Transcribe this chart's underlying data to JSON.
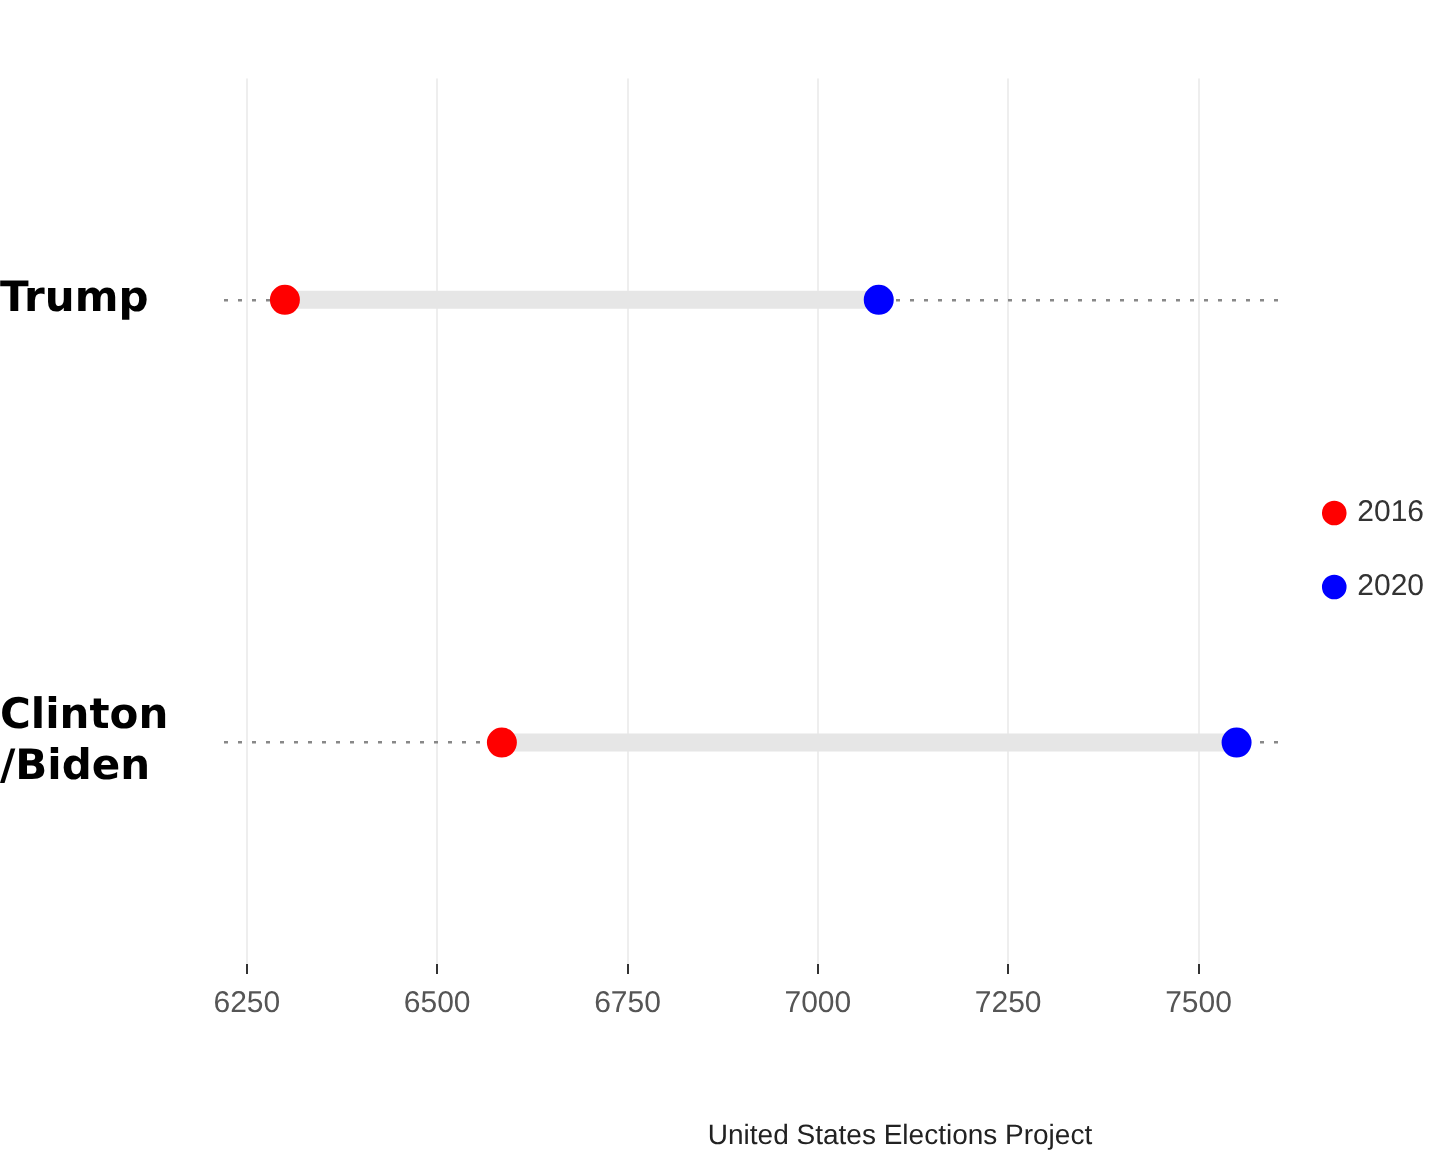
{
  "chart_data": {
    "type": "scatter",
    "orientation": "horizontal",
    "categories": [
      "Trump",
      "Clinton/Biden"
    ],
    "series": [
      {
        "name": "2016",
        "color": "#ff0000",
        "values": [
          6300,
          6585
        ]
      },
      {
        "name": "2020",
        "color": "#0000ff",
        "values": [
          7080,
          7550
        ]
      }
    ],
    "xlim": [
      6220,
      7610
    ],
    "xticks": [
      6250,
      6500,
      6750,
      7000,
      7250,
      7500
    ],
    "grid": true,
    "legend": "right",
    "marker": "circle",
    "annotations": [
      "United States Elections Project"
    ]
  }
}
